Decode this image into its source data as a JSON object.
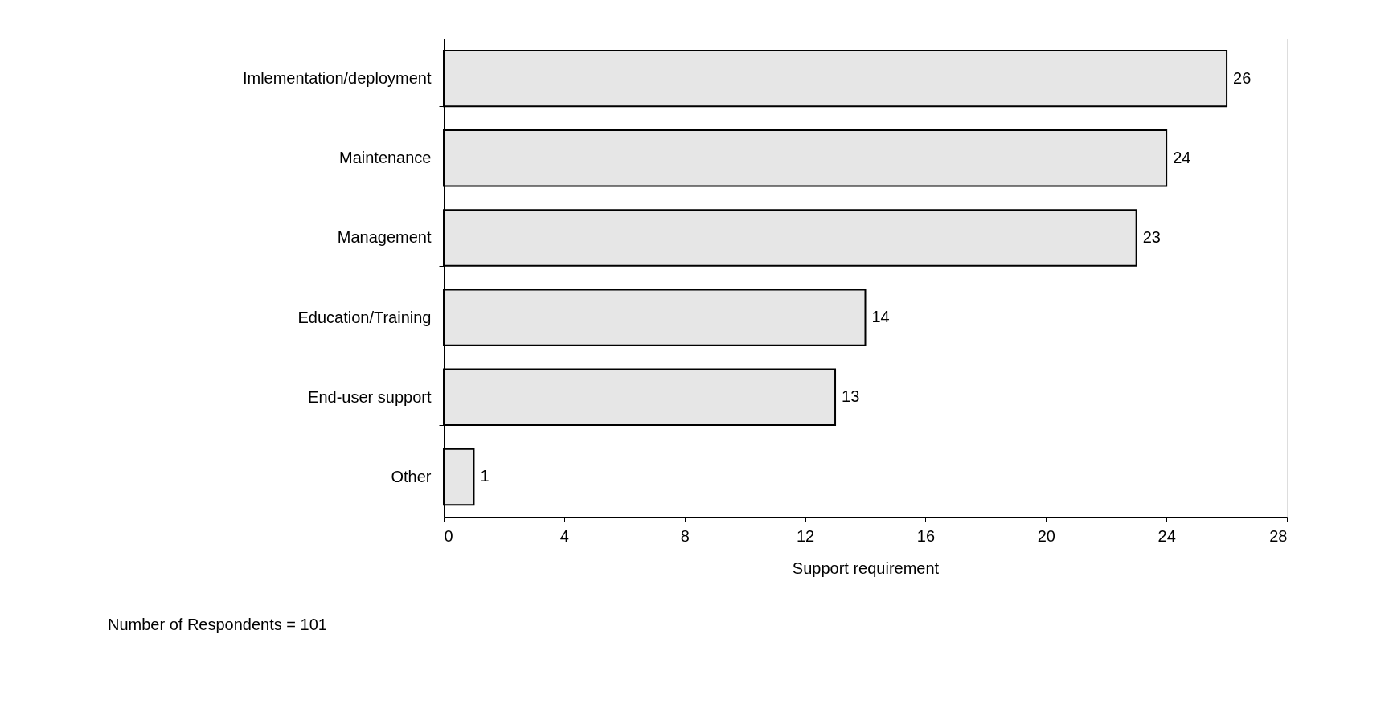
{
  "chart_data": {
    "type": "bar",
    "orientation": "horizontal",
    "xlabel": "Support requirement",
    "categories": [
      "Imlementation/deployment",
      "Maintenance",
      "Management",
      "Education/Training",
      "End-user support",
      "Other"
    ],
    "values": [
      26,
      24,
      23,
      14,
      13,
      1
    ],
    "color": "#e6e6e6",
    "xlim": [
      0,
      28
    ],
    "xticks": [
      0,
      4,
      8,
      12,
      16,
      20,
      24,
      28
    ],
    "grid": false,
    "data_labels": true,
    "annotations": [
      "Number of Respondents = 101"
    ]
  }
}
